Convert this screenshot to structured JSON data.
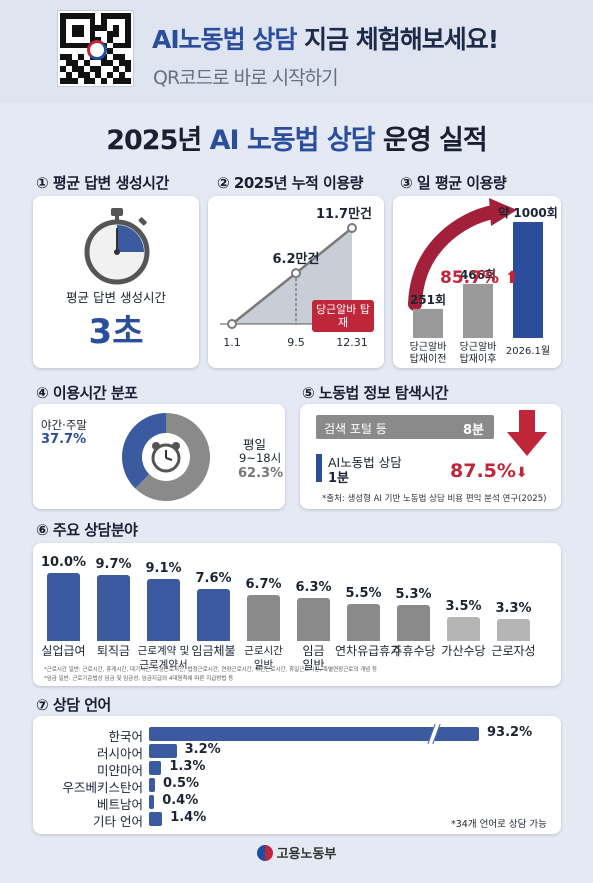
{
  "banner": {
    "title_blue": "AI노동법 상담",
    "title_rest": " 지금 체험해보세요!",
    "subtitle": "QR코드로 바로 시작하기"
  },
  "main_title": {
    "year": "2025년 ",
    "blue": "AI 노동법 상담",
    "rest": " 운영 실적"
  },
  "sections": {
    "s1": "① 평균 답변 생성시간",
    "s2": "② 2025년 누적 이용량",
    "s3": "③ 일 평균 이용량",
    "s4": "④ 이용시간 분포",
    "s5": "⑤ 노동법 정보 탐색시간",
    "s6": "⑥ 주요 상담분야",
    "s7": "⑦ 상담 언어"
  },
  "panel1": {
    "label": "평균 답변 생성시간",
    "value": "3초"
  },
  "panel3": {
    "growth": "85.7%"
  },
  "panel4": {
    "night_label": "야간·주말",
    "night_value": "37.7%",
    "day_label": "평일",
    "day_hours": "9~18시",
    "day_value": "62.3%"
  },
  "panel5": {
    "portal_label": "검색 포털 등",
    "portal_value": "8분",
    "ai_label": "AI노동법 상담",
    "ai_value": "1분",
    "reduction": "87.5%",
    "source": "*출처: 생성형 AI 기반 노동법 상담 비용 편익 분석 연구(2025)"
  },
  "panel6": {
    "footnote1": "*근로시간 일반: 근로시간, 휴게시간, 대기시간, 소정근로시간, 법정근로시간, 연장근로시간, 야간근로시간, 휴일근로시간, 특별연장근로의 개념 등",
    "footnote2": "*임금 일반: 근로기준법상 임금 및 임금성, 임금지급의 4대원칙에 따른 지급방법 등"
  },
  "panel7": {
    "note": "*34개 언어로 상담 가능"
  },
  "footer": {
    "ministry": "고용노동부"
  },
  "colors": {
    "accent": "#2a4d9c",
    "red": "#c0263a",
    "gray": "#8f8f8f",
    "bar_blue": "#3b5aa0"
  },
  "icons": [
    "qr-code-icon",
    "stopwatch-icon",
    "alarm-clock-icon",
    "arrow-up-icon",
    "arrow-down-icon",
    "government-emblem-icon"
  ],
  "chart_data": [
    {
      "type": "line",
      "title": "② 2025년 누적 이용량",
      "categories": [
        "1.1",
        "9.5",
        "12.31"
      ],
      "values": [
        0,
        6.2,
        11.7
      ],
      "data_labels": [
        "",
        "6.2만건",
        "11.7만건"
      ],
      "annotation": "당근알바 탑재",
      "unit": "만건"
    },
    {
      "type": "bar",
      "title": "③ 일 평균 이용량",
      "categories": [
        "당근알바 탑재이전",
        "당근알바 탑재이후",
        "2026.1월"
      ],
      "values": [
        251,
        466,
        1000
      ],
      "data_labels": [
        "251회",
        "466회",
        "약 1000회"
      ],
      "ylim": [
        0,
        1000
      ]
    },
    {
      "type": "pie",
      "title": "④ 이용시간 분포",
      "categories": [
        "야간·주말",
        "평일 9~18시"
      ],
      "values": [
        37.7,
        62.3
      ]
    },
    {
      "type": "bar",
      "title": "⑤ 노동법 정보 탐색시간",
      "categories": [
        "검색 포털 등",
        "AI노동법 상담"
      ],
      "values": [
        8,
        1
      ],
      "unit": "분"
    },
    {
      "type": "bar",
      "title": "⑥ 주요 상담분야",
      "categories": [
        "실업급여",
        "퇴직금",
        "근로계약 및\n근로계약서",
        "임금체불",
        "근로시간\n일반",
        "임금\n일반",
        "연차유급휴가",
        "주휴수당",
        "가산수당",
        "근로자성"
      ],
      "values": [
        10.0,
        9.7,
        9.1,
        7.6,
        6.7,
        6.3,
        5.5,
        5.3,
        3.5,
        3.3
      ],
      "data_labels": [
        "10.0%",
        "9.7%",
        "9.1%",
        "7.6%",
        "6.7%",
        "6.3%",
        "5.5%",
        "5.3%",
        "3.5%",
        "3.3%"
      ],
      "colors": [
        "#3b5aa0",
        "#3b5aa0",
        "#3b5aa0",
        "#3b5aa0",
        "#8a8a8a",
        "#8a8a8a",
        "#8a8a8a",
        "#8a8a8a",
        "#b5b5b5",
        "#b5b5b5"
      ]
    },
    {
      "type": "bar",
      "orientation": "horizontal",
      "title": "⑦ 상담 언어",
      "categories": [
        "한국어",
        "러시아어",
        "미얀마어",
        "우즈베키스탄어",
        "베트남어",
        "기타 언어"
      ],
      "values": [
        93.2,
        3.2,
        1.3,
        0.5,
        0.4,
        1.4
      ],
      "data_labels": [
        "93.2%",
        "3.2%",
        "1.3%",
        "0.5%",
        "0.4%",
        "1.4%"
      ],
      "axis_break": true
    }
  ]
}
